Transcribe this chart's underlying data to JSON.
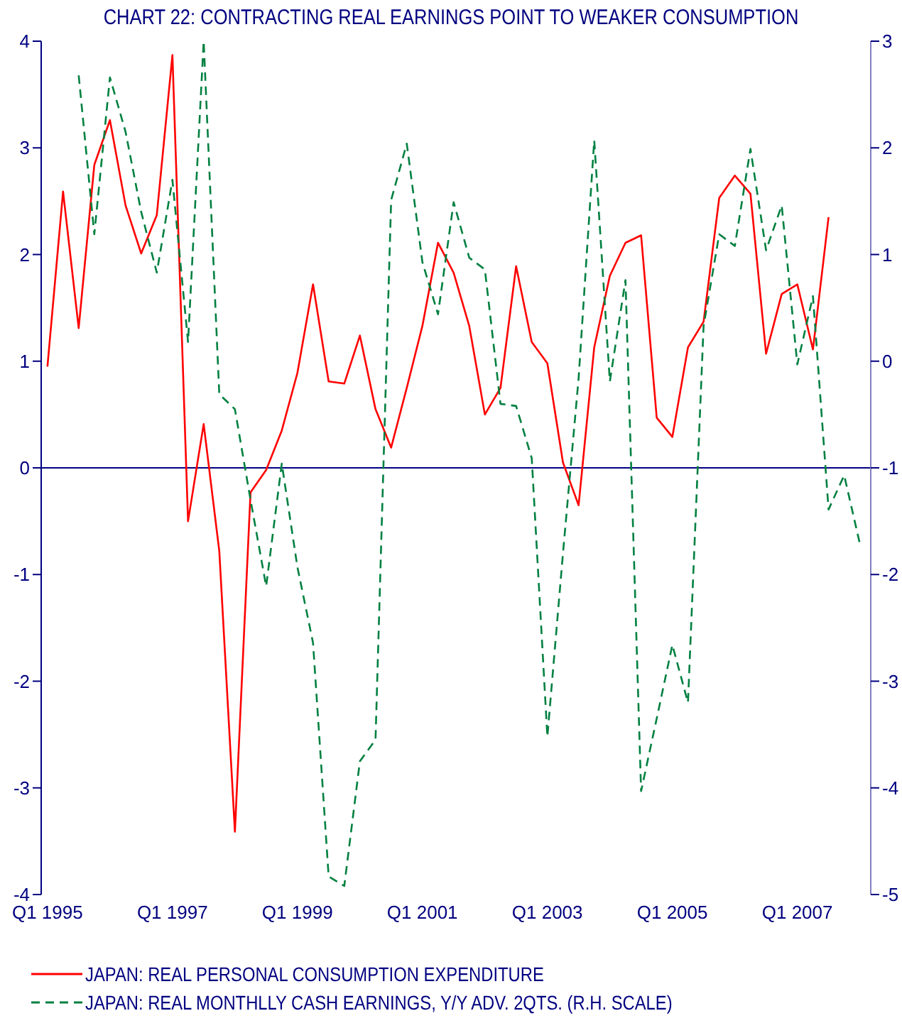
{
  "chart_data": {
    "type": "line",
    "title": "CHART 22: CONTRACTING REAL EARNINGS POINT TO WEAKER CONSUMPTION",
    "categories": [
      "Q1 1995",
      null,
      null,
      null,
      null,
      null,
      null,
      null,
      "Q1 1997",
      null,
      null,
      null,
      null,
      null,
      null,
      null,
      "Q1 1999",
      null,
      null,
      null,
      null,
      null,
      null,
      null,
      "Q1 2001",
      null,
      null,
      null,
      null,
      null,
      null,
      null,
      "Q1 2003",
      null,
      null,
      null,
      null,
      null,
      null,
      null,
      "Q1 2005",
      null,
      null,
      null,
      null,
      null,
      null,
      null,
      "Q1 2007",
      null,
      null,
      null,
      null
    ],
    "ylim": [
      -4,
      4
    ],
    "yticks": [
      -4,
      -3,
      -2,
      -1,
      0,
      1,
      2,
      3,
      4
    ],
    "y2lim": [
      -5,
      3
    ],
    "y2ticks": [
      -5,
      -4,
      -3,
      -2,
      -1,
      0,
      1,
      2,
      3
    ],
    "legend": "bottom left",
    "ref_lines": [
      {
        "axis": "y",
        "value": 0,
        "color": "#000080"
      }
    ],
    "series": [
      {
        "name": "JAPAN: REAL PERSONAL CONSUMPTION EXPENDITURE",
        "color": "#ff0000",
        "line_style": "solid",
        "values": [
          0.95,
          2.59,
          1.31,
          2.84,
          3.26,
          2.46,
          2.01,
          2.37,
          3.87,
          -0.5,
          0.41,
          -0.78,
          -3.41,
          -0.23,
          -0.02,
          0.35,
          0.89,
          1.72,
          0.81,
          0.79,
          1.24,
          0.55,
          0.19,
          0.75,
          1.33,
          2.11,
          1.83,
          1.33,
          0.5,
          0.75,
          1.89,
          1.18,
          0.98,
          0.05,
          -0.35,
          1.13,
          1.8,
          2.11,
          2.18,
          0.47,
          0.29,
          1.13,
          1.37,
          2.53,
          2.74,
          2.57,
          1.07,
          1.63,
          1.72,
          1.11,
          2.35,
          null,
          null
        ]
      },
      {
        "name": "JAPAN: REAL MONTHLLY CASH EARNINGS, Y/Y ADV. 2QTS. (R.H. SCALE)",
        "color": "#008040",
        "line_style": "dashed",
        "axis": "y2",
        "values": [
          null,
          null,
          2.68,
          1.19,
          2.66,
          2.15,
          1.4,
          0.83,
          1.7,
          0.18,
          3.0,
          -0.31,
          -0.45,
          -1.3,
          -2.11,
          -0.96,
          -1.93,
          -2.64,
          -4.83,
          -4.92,
          -3.75,
          -3.55,
          1.51,
          2.04,
          0.93,
          0.44,
          1.49,
          0.97,
          0.86,
          -0.4,
          -0.42,
          -0.91,
          -3.52,
          -1.8,
          -0.16,
          2.07,
          -0.19,
          0.76,
          -4.03,
          -3.35,
          -2.66,
          -3.2,
          0.33,
          1.19,
          1.08,
          1.99,
          1.04,
          1.46,
          -0.03,
          0.61,
          -1.39,
          -1.07,
          -1.71
        ]
      }
    ]
  }
}
